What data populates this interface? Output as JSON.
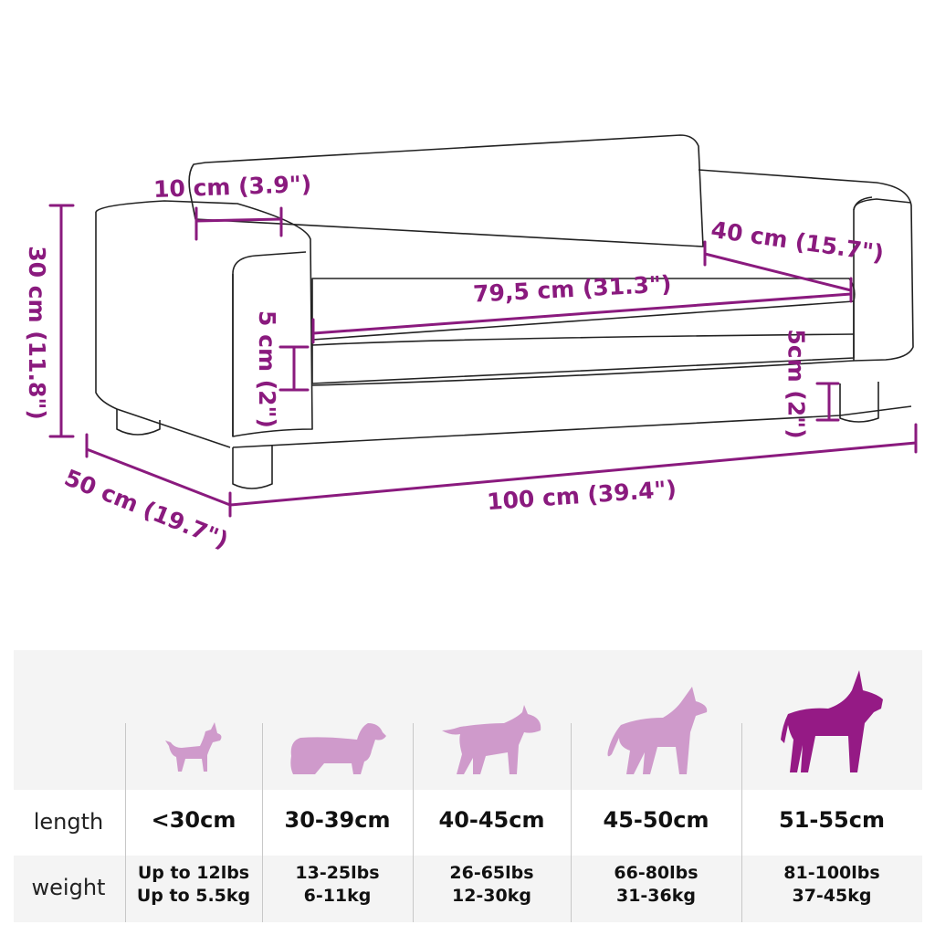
{
  "dimensions": {
    "backrest_depth": "10 cm (3.9\")",
    "height": "30 cm (11.8\")",
    "seat_depth": "40 cm (15.7\")",
    "seat_width": "79,5 cm (31.3\")",
    "cushion_left": "5 cm (2\")",
    "leg_height": "5cm (2\")",
    "depth": "50 cm (19.7\")",
    "width": "100 cm (39.4\")"
  },
  "colors": {
    "accent": "#8a1a7e",
    "dog_light": "#cf9acb",
    "dog_dark": "#951a85",
    "table_bg": "#f4f4f4"
  },
  "size_table": {
    "row_labels": {
      "length": "length",
      "weight": "weight"
    },
    "columns": [
      {
        "icon": "chihuahua-icon",
        "length": "<30cm",
        "weight_lbs": "Up to 12lbs",
        "weight_kg": "Up to 5.5kg"
      },
      {
        "icon": "dachshund-icon",
        "length": "30-39cm",
        "weight_lbs": "13-25lbs",
        "weight_kg": "6-11kg"
      },
      {
        "icon": "bull-terrier-icon",
        "length": "40-45cm",
        "weight_lbs": "26-65lbs",
        "weight_kg": "12-30kg"
      },
      {
        "icon": "shepherd-icon",
        "length": "45-50cm",
        "weight_lbs": "66-80lbs",
        "weight_kg": "31-36kg"
      },
      {
        "icon": "great-dane-icon",
        "length": "51-55cm",
        "weight_lbs": "81-100lbs",
        "weight_kg": "37-45kg",
        "highlighted": true
      }
    ]
  }
}
